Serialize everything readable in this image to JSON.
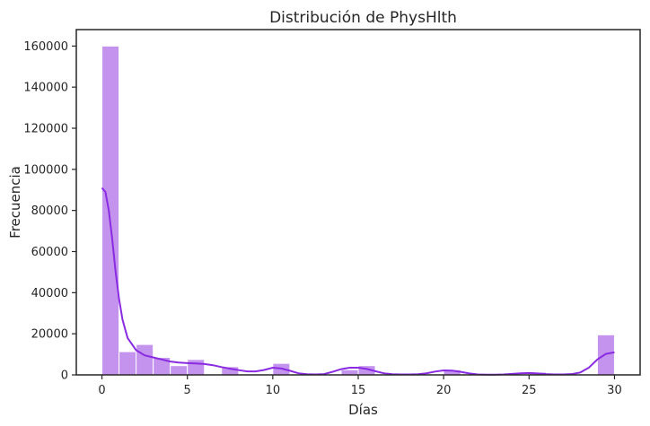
{
  "chart_data": {
    "type": "bar",
    "subtype": "histogram",
    "title": "Distribución de PhysHlth",
    "xlabel": "Días",
    "ylabel": "Frecuencia",
    "xlim": [
      -1.5,
      31.5
    ],
    "ylim": [
      0,
      168000
    ],
    "x_ticks": [
      "0",
      "5",
      "10",
      "15",
      "20",
      "25",
      "30"
    ],
    "y_ticks": [
      "0",
      "20000",
      "40000",
      "60000",
      "80000",
      "100000",
      "120000",
      "140000",
      "160000"
    ],
    "bin_width": 1,
    "bins": [
      {
        "start": 0,
        "count": 160000
      },
      {
        "start": 1,
        "count": 11300
      },
      {
        "start": 2,
        "count": 14800
      },
      {
        "start": 3,
        "count": 8500
      },
      {
        "start": 4,
        "count": 4500
      },
      {
        "start": 5,
        "count": 7500
      },
      {
        "start": 7,
        "count": 4000
      },
      {
        "start": 10,
        "count": 5600
      },
      {
        "start": 14,
        "count": 2500
      },
      {
        "start": 15,
        "count": 4500
      },
      {
        "start": 20,
        "count": 2500
      },
      {
        "start": 25,
        "count": 1300
      },
      {
        "start": 29,
        "count": 19500
      }
    ],
    "kde": {
      "x": [
        0,
        0.2,
        0.4,
        0.6,
        0.8,
        1,
        1.2,
        1.5,
        2,
        2.5,
        3,
        3.5,
        4,
        4.5,
        5,
        5.5,
        6,
        6.5,
        7,
        7.5,
        8,
        8.5,
        9,
        9.5,
        10,
        10.5,
        11,
        11.5,
        12,
        12.5,
        13,
        13.5,
        14,
        14.5,
        15,
        15.5,
        16,
        16.5,
        17,
        17.5,
        18,
        18.5,
        19,
        19.5,
        20,
        20.5,
        21,
        21.5,
        22,
        22.5,
        23,
        23.5,
        24,
        24.5,
        25,
        25.5,
        26,
        26.5,
        27,
        27.5,
        28,
        28.5,
        29,
        29.5,
        30
      ],
      "y": [
        91000,
        89000,
        80000,
        66000,
        50000,
        37000,
        27000,
        18000,
        12000,
        9500,
        8500,
        7500,
        6500,
        6000,
        5700,
        5600,
        5300,
        4700,
        3800,
        3000,
        2300,
        1700,
        1700,
        2400,
        3500,
        3100,
        2000,
        800,
        300,
        200,
        400,
        1500,
        2800,
        3500,
        3500,
        2900,
        1800,
        800,
        300,
        200,
        200,
        300,
        800,
        1600,
        2200,
        2100,
        1500,
        700,
        200,
        100,
        100,
        200,
        500,
        800,
        900,
        700,
        400,
        200,
        200,
        400,
        1200,
        3500,
        7500,
        10200,
        11000
      ]
    },
    "colors": {
      "bar": "#c393ed",
      "bar_edge": "#ffffff",
      "kde": "#8a2be2",
      "frame": "#262626"
    },
    "grid": false,
    "legend": "none"
  }
}
